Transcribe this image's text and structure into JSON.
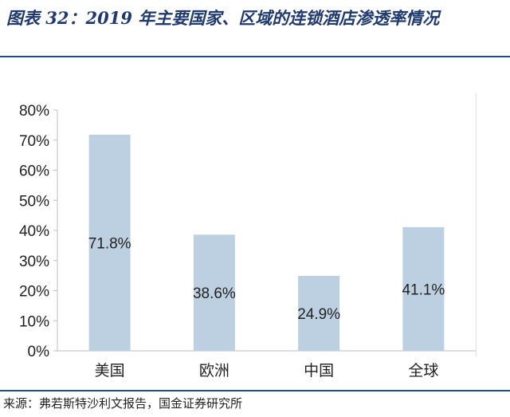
{
  "figure": {
    "title": "图表 32：2019 年主要国家、区域的连锁酒店渗透率情况",
    "source": "来源：弗若斯特沙利文报告，国金证券研究所"
  },
  "chart_data": {
    "type": "bar",
    "categories": [
      "美国",
      "欧洲",
      "中国",
      "全球"
    ],
    "values": [
      71.8,
      38.6,
      24.9,
      41.1
    ],
    "data_labels": [
      "71.8%",
      "38.6%",
      "24.9%",
      "41.1%"
    ],
    "ylim": [
      0,
      80
    ],
    "yticks": [
      "0%",
      "10%",
      "20%",
      "30%",
      "40%",
      "50%",
      "60%",
      "70%",
      "80%"
    ],
    "grid": false,
    "bar_color": "#bdd0e1"
  }
}
